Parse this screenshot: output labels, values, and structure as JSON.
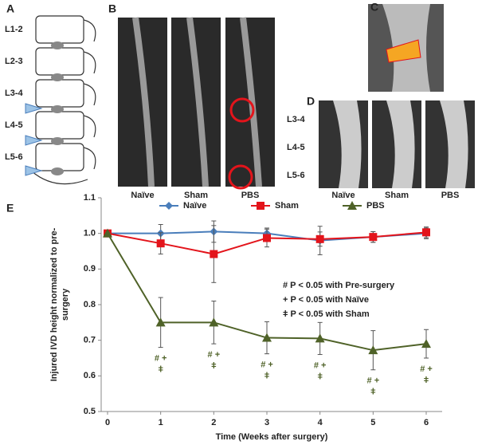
{
  "panels": {
    "labels": [
      "A",
      "B",
      "C",
      "D",
      "E"
    ],
    "a_levels": [
      "L1-2",
      "L2-3",
      "L3-4",
      "L4-5",
      "L5-6"
    ],
    "b_groups": [
      "Naïve",
      "Sham",
      "PBS"
    ],
    "d_levels": [
      "L3-4",
      "L4-5",
      "L5-6"
    ],
    "d_groups": [
      "Naïve",
      "Sham",
      "PBS"
    ]
  },
  "chart_data": {
    "type": "line",
    "xlabel": "Time (Weeks after surgery)",
    "ylabel": [
      "Injured IVD height normalized to pre-",
      "surgery"
    ],
    "x": [
      0,
      1,
      2,
      3,
      4,
      5,
      6
    ],
    "series": [
      {
        "name": "Naïve",
        "color": "#4a7ebb",
        "marker": "diamond",
        "values": [
          1.0,
          1.0,
          1.005,
          1.0,
          0.98,
          0.99,
          1.0
        ],
        "errors": [
          0,
          0.025,
          0.03,
          0.015,
          0.04,
          0.015,
          0.015
        ]
      },
      {
        "name": "Sham",
        "color": "#e3141b",
        "marker": "square",
        "values": [
          1.0,
          0.972,
          0.942,
          0.987,
          0.984,
          0.99,
          1.003
        ],
        "errors": [
          0,
          0.03,
          0.08,
          0.025,
          0.02,
          0.015,
          0.015
        ]
      },
      {
        "name": "PBS",
        "color": "#4f6228",
        "marker": "triangle",
        "values": [
          1.0,
          0.75,
          0.75,
          0.707,
          0.705,
          0.672,
          0.69
        ],
        "errors": [
          0,
          0.07,
          0.06,
          0.045,
          0.045,
          0.055,
          0.04
        ]
      }
    ],
    "significance": [
      null,
      [
        "# +",
        "ǂ"
      ],
      [
        "# +",
        "ǂ"
      ],
      [
        "# +",
        "ǂ"
      ],
      [
        "# +",
        "ǂ"
      ],
      [
        "# +",
        "ǂ"
      ],
      [
        "# +",
        "ǂ"
      ]
    ],
    "annotations": [
      "# P < 0.05 with Pre-surgery",
      "+ P < 0.05 with Naïve",
      "ǂ P < 0.05 with Sham"
    ],
    "xlim": [
      -0.12,
      6.3
    ],
    "ylim": [
      0.5,
      1.1
    ],
    "xticks": [
      0,
      1,
      2,
      3,
      4,
      5,
      6
    ],
    "yticks": [
      0.5,
      0.6,
      0.7,
      0.8,
      0.9,
      {
        "value": 1.0,
        "label": "1.0"
      },
      1.1
    ],
    "legend": "top"
  }
}
